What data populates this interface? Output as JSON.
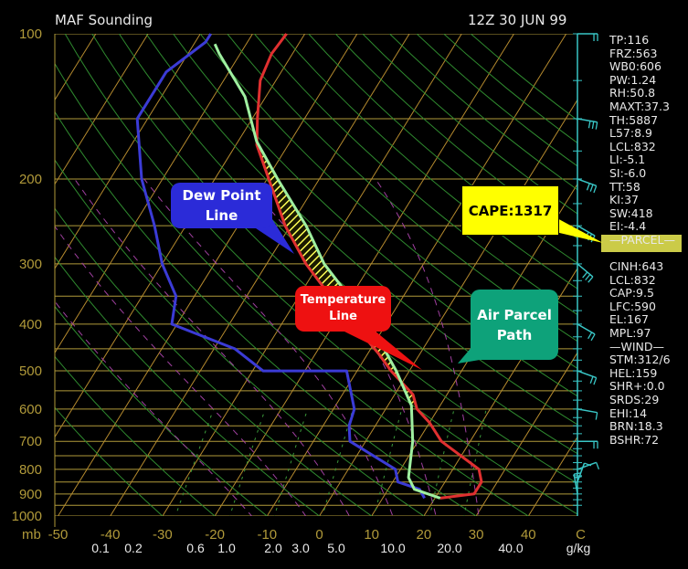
{
  "header": {
    "station": "MAF Sounding",
    "time": "12Z 30 JUN 99"
  },
  "indices": [
    "TP:116",
    "FRZ:563",
    "WB0:606",
    "PW:1.24",
    "RH:50.8",
    "MAXT:37.3",
    "TH:5887",
    "L57:8.9",
    "LCL:832",
    "LI:-5.1",
    "SI:-6.0",
    "TT:58",
    "KI:37",
    "SW:418",
    "EI:-4.4",
    "—PARCEL—",
    "",
    "CINH:643",
    "LCL:832",
    "CAP:9.5",
    "LFC:590",
    "EL:167",
    "MPL:97",
    "—WIND—",
    "STM:312/6",
    "HEL:159",
    "SHR+:0.0",
    "SRDS:29",
    "EHI:14",
    "BRN:18.3",
    "BSHR:72"
  ],
  "callouts": {
    "dew_point": [
      "Dew Point",
      "Line"
    ],
    "temperature": [
      "Temperature",
      "Line"
    ],
    "parcel": [
      "Air Parcel",
      "Path"
    ],
    "cape": "CAPE:1317"
  },
  "colors": {
    "temperature": "#e03030",
    "dewpoint": "#3b3bd6",
    "parcel": "#9fefa0",
    "isobar": "#b19a3a",
    "isotherm": "#b58a2e",
    "dry_adiabat": "#2f8a2f",
    "moist_adiabat": "#a040a0",
    "wind": "#39c6c6",
    "cape_fill": "#ffff55"
  },
  "chart_data": {
    "type": "line",
    "chart_kind": "Skew-T log-P sounding",
    "pressure_axis": {
      "unit": "mb",
      "scale": "log",
      "range": [
        1000,
        100
      ],
      "ticks": [
        100,
        200,
        300,
        400,
        500,
        600,
        700,
        800,
        900,
        1000
      ],
      "tick_labels": [
        "100",
        "200",
        "300",
        "400",
        "500",
        "600",
        "700",
        "800",
        "900",
        "1000"
      ]
    },
    "temperature_axis": {
      "unit": "C",
      "range": [
        -50,
        50
      ],
      "ticks": [
        -50,
        -40,
        -30,
        -20,
        -10,
        0,
        10,
        20,
        30,
        40,
        50
      ],
      "tick_labels": [
        "-50",
        "-40",
        "-30",
        "-20",
        "-10",
        "0",
        "10",
        "20",
        "30",
        "40",
        "C"
      ]
    },
    "mixing_ratio_axis": {
      "unit": "g/kg",
      "tick_labels": [
        "0.1",
        "0.2",
        "0.6",
        "1.0",
        "2.0",
        "3.0",
        "5.0",
        "10.0",
        "20.0",
        "40.0"
      ]
    },
    "series": [
      {
        "name": "Temperature",
        "color": "#e03030",
        "points": [
          {
            "p": 918,
            "t": 21.0
          },
          {
            "p": 900,
            "t": 27.0
          },
          {
            "p": 850,
            "t": 27.0
          },
          {
            "p": 800,
            "t": 25.0
          },
          {
            "p": 700,
            "t": 14.5
          },
          {
            "p": 640,
            "t": 10.0
          },
          {
            "p": 600,
            "t": 6.0
          },
          {
            "p": 560,
            "t": 3.5
          },
          {
            "p": 500,
            "t": -3.5
          },
          {
            "p": 460,
            "t": -8.0
          },
          {
            "p": 350,
            "t": -24.0
          },
          {
            "p": 300,
            "t": -32.5
          },
          {
            "p": 250,
            "t": -41.0
          },
          {
            "p": 170,
            "t": -56.0
          },
          {
            "p": 150,
            "t": -59.0
          },
          {
            "p": 125,
            "t": -63.0
          },
          {
            "p": 110,
            "t": -64.0
          },
          {
            "p": 100,
            "t": -63.5
          }
        ]
      },
      {
        "name": "Dew Point",
        "color": "#3b3bd6",
        "points": [
          {
            "p": 918,
            "t": 18.0
          },
          {
            "p": 880,
            "t": 16.0
          },
          {
            "p": 850,
            "t": 11.0
          },
          {
            "p": 800,
            "t": 9.0
          },
          {
            "p": 700,
            "t": -3.0
          },
          {
            "p": 650,
            "t": -5.0
          },
          {
            "p": 600,
            "t": -6.0
          },
          {
            "p": 500,
            "t": -12.0
          },
          {
            "p": 500,
            "t": -28.0
          },
          {
            "p": 450,
            "t": -36.0
          },
          {
            "p": 400,
            "t": -51.0
          },
          {
            "p": 350,
            "t": -53.5
          },
          {
            "p": 300,
            "t": -60.0
          },
          {
            "p": 250,
            "t": -66.0
          },
          {
            "p": 200,
            "t": -74.0
          },
          {
            "p": 150,
            "t": -82.0
          },
          {
            "p": 120,
            "t": -82.0
          },
          {
            "p": 104,
            "t": -78.0
          },
          {
            "p": 100,
            "t": -78.0
          }
        ]
      },
      {
        "name": "Air Parcel Path",
        "color": "#9fefa0",
        "points": [
          {
            "p": 918,
            "t": 21.0
          },
          {
            "p": 880,
            "t": 15.0
          },
          {
            "p": 832,
            "t": 12.5
          },
          {
            "p": 700,
            "t": 9.0
          },
          {
            "p": 590,
            "t": 4.5
          },
          {
            "p": 500,
            "t": -2.5
          },
          {
            "p": 400,
            "t": -13.0
          },
          {
            "p": 300,
            "t": -29.0
          },
          {
            "p": 250,
            "t": -37.0
          },
          {
            "p": 200,
            "t": -48.0
          },
          {
            "p": 167,
            "t": -56.5
          },
          {
            "p": 135,
            "t": -64.0
          },
          {
            "p": 110,
            "t": -74.0
          },
          {
            "p": 105,
            "t": -76.0
          }
        ]
      }
    ],
    "cape_region": {
      "from_p": 590,
      "to_p": 167
    },
    "wind_profile": [
      {
        "p": 900,
        "dir": 170,
        "spd": 15
      },
      {
        "p": 850,
        "dir": 200,
        "spd": 10
      },
      {
        "p": 800,
        "dir": 250,
        "spd": 10
      },
      {
        "p": 700,
        "dir": 270,
        "spd": 15
      },
      {
        "p": 600,
        "dir": 280,
        "spd": 10
      },
      {
        "p": 500,
        "dir": 290,
        "spd": 15
      },
      {
        "p": 400,
        "dir": 300,
        "spd": 20
      },
      {
        "p": 300,
        "dir": 310,
        "spd": 25
      },
      {
        "p": 250,
        "dir": 300,
        "spd": 30
      },
      {
        "p": 200,
        "dir": 290,
        "spd": 30
      },
      {
        "p": 150,
        "dir": 280,
        "spd": 25
      },
      {
        "p": 100,
        "dir": 270,
        "spd": 20
      }
    ]
  }
}
